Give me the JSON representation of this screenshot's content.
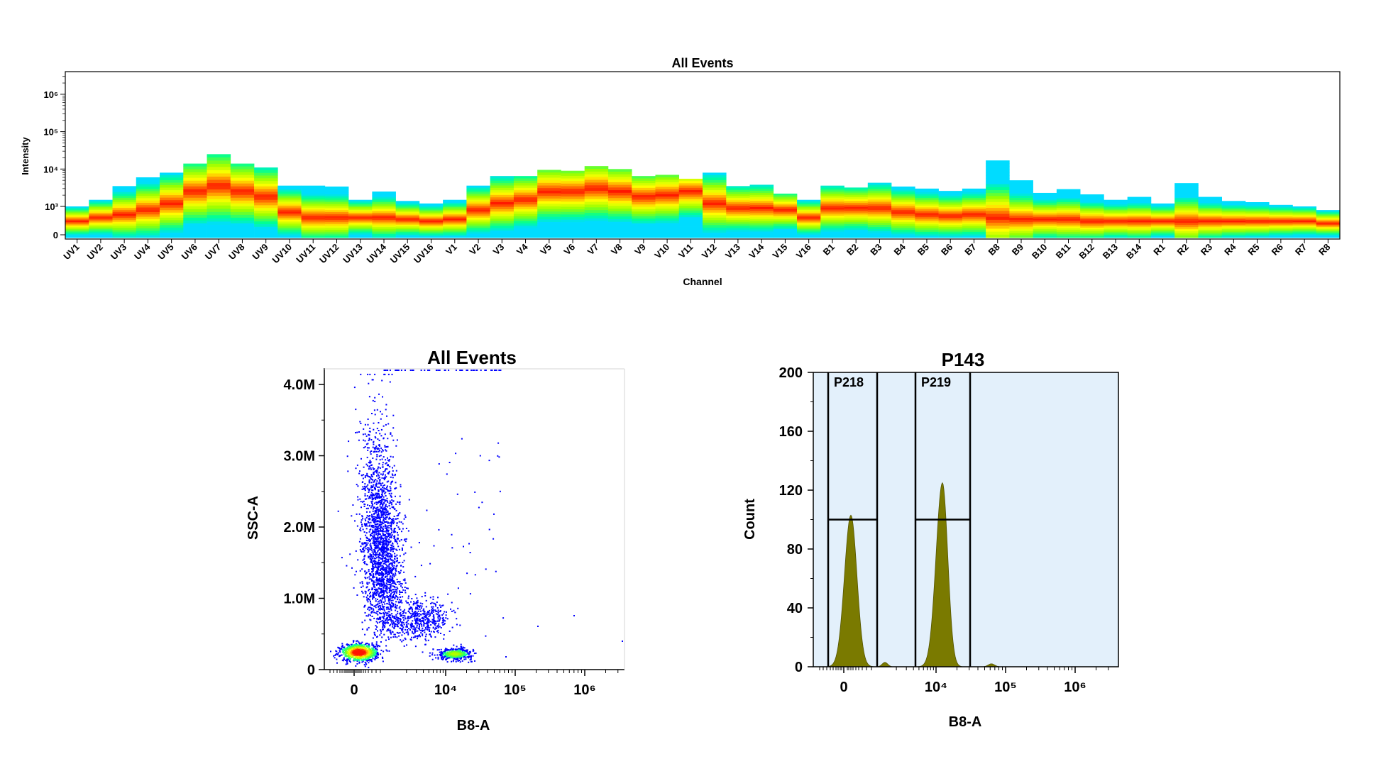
{
  "chart_data": [
    {
      "type": "heatmap",
      "title": "All Events",
      "xlabel": "Channel",
      "ylabel": "Intensity",
      "y_scale": "log",
      "y_tick_labels": [
        "0",
        "10³",
        "10⁴",
        "10⁵",
        "10⁶"
      ],
      "categories": [
        "UV1",
        "UV2",
        "UV3",
        "UV4",
        "UV5",
        "UV6",
        "UV7",
        "UV8",
        "UV9",
        "UV10",
        "UV11",
        "UV12",
        "UV13",
        "UV14",
        "UV15",
        "UV16",
        "V1",
        "V2",
        "V3",
        "V4",
        "V5",
        "V6",
        "V7",
        "V8",
        "V9",
        "V10",
        "V11",
        "V12",
        "V13",
        "V14",
        "V15",
        "V16",
        "B1",
        "B2",
        "B3",
        "B4",
        "B5",
        "B6",
        "B7",
        "B8",
        "B9",
        "B10",
        "B11",
        "B12",
        "B13",
        "B14",
        "R1",
        "R2",
        "R3",
        "R4",
        "R5",
        "R6",
        "R7",
        "R8"
      ],
      "max_values": [
        1000,
        1500,
        3500,
        6000,
        8000,
        14000,
        25000,
        14000,
        11000,
        3600,
        3600,
        3400,
        1500,
        2500,
        1400,
        1200,
        1500,
        3600,
        6500,
        6500,
        9500,
        9000,
        12000,
        10000,
        6500,
        7000,
        5500,
        8000,
        3500,
        3800,
        2200,
        1500,
        3600,
        3200,
        4300,
        3400,
        3000,
        2600,
        3000,
        17000,
        5000,
        2300,
        2900,
        2100,
        1500,
        1800,
        1200,
        4200,
        1800,
        1400,
        1300,
        1100,
        1000,
        800
      ],
      "peak_values": [
        400,
        500,
        600,
        800,
        1200,
        2500,
        3500,
        2500,
        1800,
        700,
        500,
        500,
        500,
        500,
        450,
        400,
        450,
        800,
        1200,
        1500,
        2500,
        2500,
        3000,
        2500,
        1800,
        2000,
        2500,
        1200,
        900,
        900,
        800,
        500,
        900,
        900,
        900,
        700,
        600,
        550,
        600,
        500,
        450,
        450,
        450,
        400,
        400,
        400,
        400,
        400,
        400,
        400,
        400,
        400,
        400,
        350
      ]
    },
    {
      "type": "scatter",
      "title": "All Events",
      "xlabel": "B8-A",
      "ylabel": "SSC-A",
      "x_scale": "biexponential",
      "x_tick_labels": [
        "0",
        "10⁴",
        "10⁵",
        "10⁶"
      ],
      "y_tick_labels": [
        "0",
        "1.0M",
        "2.0M",
        "3.0M",
        "4.0M"
      ],
      "ylim": [
        0,
        4200000
      ],
      "populations": [
        {
          "x_center": 200,
          "y_center": 250000,
          "count": 900
        },
        {
          "x_center": 12000,
          "y_center": 230000,
          "count": 450
        },
        {
          "x_center": 1500,
          "y_center": 2000000,
          "count": 2200
        },
        {
          "x_center": 4000,
          "y_center": 700000,
          "count": 500
        }
      ]
    },
    {
      "type": "area",
      "title": "P143",
      "xlabel": "B8-A",
      "ylabel": "Count",
      "x_scale": "biexponential",
      "x_tick_labels": [
        "0",
        "10⁴",
        "10⁵",
        "10⁶"
      ],
      "y_tick_labels": [
        "0",
        "40",
        "80",
        "120",
        "160",
        "200"
      ],
      "ylim": [
        0,
        200
      ],
      "series": [
        {
          "values": [
            103,
            125
          ]
        }
      ],
      "gates": [
        {
          "name": "P218",
          "x_range": [
            -800,
            2500
          ],
          "level": 100
        },
        {
          "name": "P219",
          "x_range": [
            5000,
            30000
          ],
          "level": 100
        }
      ]
    }
  ],
  "colors": {
    "heat_low": "#00ff99",
    "heat_high": "#ff1a00",
    "scatter_dot": "#0000ff",
    "histogram_fill": "#7a7a00",
    "histogram_bg": "#e3f0fb"
  }
}
